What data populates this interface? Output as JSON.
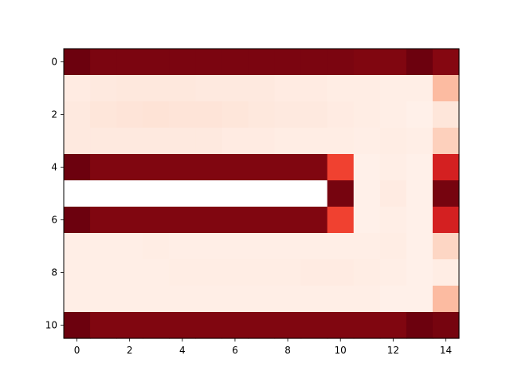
{
  "chart_data": {
    "type": "heatmap",
    "colormap": "Reds",
    "title": "",
    "xlabel": "",
    "ylabel": "",
    "x_ticks": [
      "0",
      "2",
      "4",
      "6",
      "8",
      "10",
      "12",
      "14"
    ],
    "y_ticks": [
      "0",
      "2",
      "4",
      "6",
      "8",
      "10"
    ],
    "rows": 11,
    "cols": 15,
    "value_range": [
      0,
      1
    ],
    "grid": false,
    "values": [
      [
        0.99,
        0.96,
        0.96,
        0.96,
        0.96,
        0.96,
        0.96,
        0.96,
        0.96,
        0.96,
        0.96,
        0.95,
        0.95,
        0.99,
        0.94
      ],
      [
        0.06,
        0.07,
        0.08,
        0.08,
        0.08,
        0.07,
        0.07,
        0.07,
        0.06,
        0.06,
        0.05,
        0.05,
        0.04,
        0.04,
        0.25
      ],
      [
        0.07,
        0.09,
        0.1,
        0.11,
        0.1,
        0.1,
        0.09,
        0.08,
        0.07,
        0.07,
        0.06,
        0.05,
        0.04,
        0.03,
        0.09
      ],
      [
        0.07,
        0.07,
        0.07,
        0.07,
        0.07,
        0.07,
        0.06,
        0.06,
        0.05,
        0.05,
        0.05,
        0.04,
        0.05,
        0.04,
        0.18
      ],
      [
        0.99,
        0.95,
        0.95,
        0.95,
        0.95,
        0.95,
        0.95,
        0.95,
        0.95,
        0.95,
        0.61,
        0.03,
        0.04,
        0.03,
        0.72
      ],
      [
        0.0,
        0.0,
        0.0,
        0.0,
        0.0,
        0.0,
        0.0,
        0.0,
        0.0,
        0.0,
        0.97,
        0.03,
        0.06,
        0.03,
        0.97
      ],
      [
        0.99,
        0.95,
        0.95,
        0.95,
        0.95,
        0.95,
        0.95,
        0.95,
        0.95,
        0.95,
        0.61,
        0.03,
        0.04,
        0.03,
        0.72
      ],
      [
        0.04,
        0.04,
        0.04,
        0.05,
        0.04,
        0.04,
        0.04,
        0.04,
        0.04,
        0.04,
        0.04,
        0.04,
        0.05,
        0.03,
        0.16
      ],
      [
        0.04,
        0.04,
        0.04,
        0.04,
        0.05,
        0.05,
        0.05,
        0.05,
        0.05,
        0.06,
        0.06,
        0.05,
        0.04,
        0.03,
        0.05
      ],
      [
        0.04,
        0.04,
        0.04,
        0.04,
        0.04,
        0.04,
        0.04,
        0.04,
        0.04,
        0.04,
        0.04,
        0.04,
        0.03,
        0.03,
        0.25
      ],
      [
        0.99,
        0.95,
        0.95,
        0.95,
        0.95,
        0.95,
        0.95,
        0.95,
        0.95,
        0.95,
        0.95,
        0.95,
        0.95,
        0.99,
        0.97
      ]
    ]
  }
}
